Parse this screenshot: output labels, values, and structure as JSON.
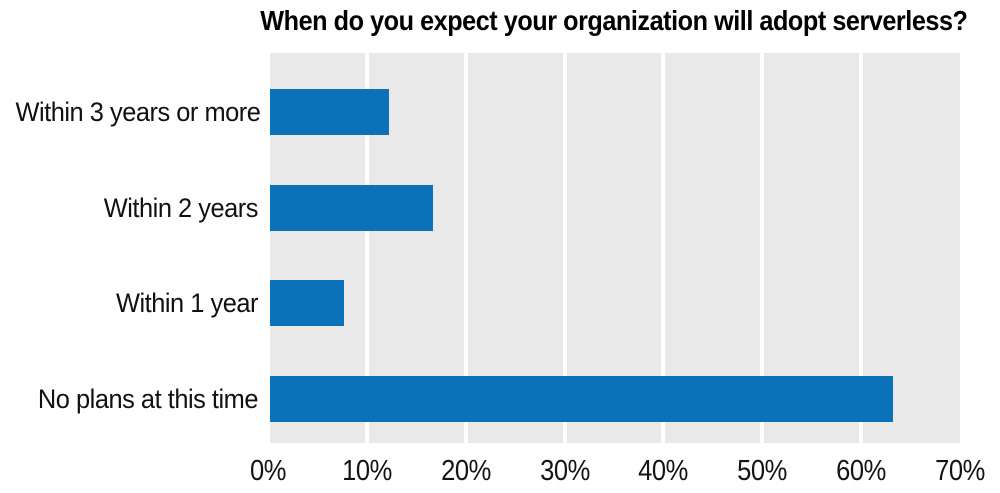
{
  "colors": {
    "bar": "#0b72b9",
    "plot_background": "#e9e9e9",
    "gridline": "#ffffff",
    "title_text": "#000000",
    "label_text": "#111111"
  },
  "chart_data": {
    "type": "bar",
    "orientation": "horizontal",
    "title": "When do you expect your organization will adopt serverless?",
    "categories": [
      "Within 3 years or more",
      "Within 2 years",
      "Within 1 year",
      "No plans at this time"
    ],
    "values": [
      12,
      16.5,
      7.5,
      63
    ],
    "value_unit": "%",
    "xlabel": "",
    "ylabel": "",
    "xlim": [
      0,
      70
    ],
    "x_ticks": [
      "0%",
      "10%",
      "20%",
      "30%",
      "40%",
      "50%",
      "60%",
      "70%"
    ],
    "grid": "vertical white gridlines at 10% intervals",
    "legend_position": "none"
  }
}
